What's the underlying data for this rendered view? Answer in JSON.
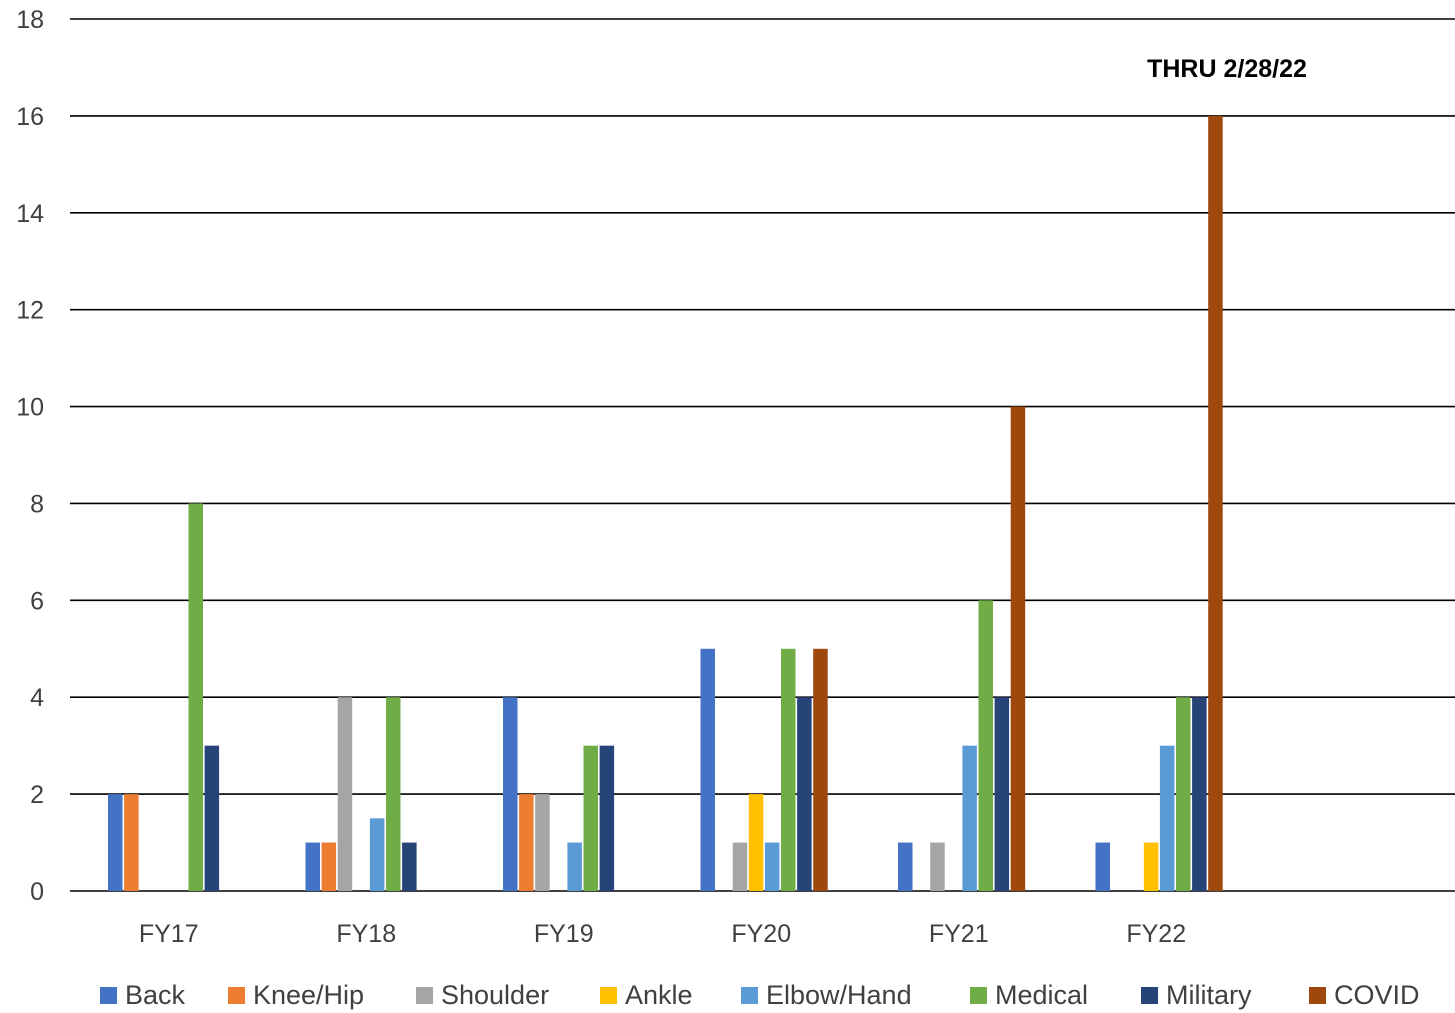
{
  "chart_data": {
    "type": "bar",
    "annotation": "THRU 2/28/22",
    "categories": [
      "FY17",
      "FY18",
      "FY19",
      "FY20",
      "FY21",
      "FY22"
    ],
    "ylim": [
      0,
      18
    ],
    "yticks": [
      0,
      2,
      4,
      6,
      8,
      10,
      12,
      14,
      16,
      18
    ],
    "grid": true,
    "legend_position": "bottom",
    "series": [
      {
        "name": "Back",
        "color": "#4472C4",
        "values": [
          2,
          1,
          4,
          5,
          1,
          1
        ]
      },
      {
        "name": "Knee/Hip",
        "color": "#ED7D31",
        "values": [
          2,
          1,
          2,
          0,
          0,
          0
        ]
      },
      {
        "name": "Shoulder",
        "color": "#A5A5A5",
        "values": [
          0,
          4,
          2,
          1,
          1,
          0
        ]
      },
      {
        "name": "Ankle",
        "color": "#FFC000",
        "values": [
          0,
          0,
          0,
          2,
          0,
          1
        ]
      },
      {
        "name": "Elbow/Hand",
        "color": "#5B9BD5",
        "values": [
          0,
          1.5,
          1,
          1,
          3,
          3
        ]
      },
      {
        "name": "Medical",
        "color": "#70AD47",
        "values": [
          8,
          4,
          3,
          5,
          6,
          4
        ]
      },
      {
        "name": "Military",
        "color": "#264478",
        "values": [
          3,
          1,
          3,
          4,
          4,
          4
        ]
      },
      {
        "name": "COVID",
        "color": "#9E480E",
        "values": [
          0,
          0,
          0,
          5,
          10,
          16
        ]
      }
    ]
  }
}
